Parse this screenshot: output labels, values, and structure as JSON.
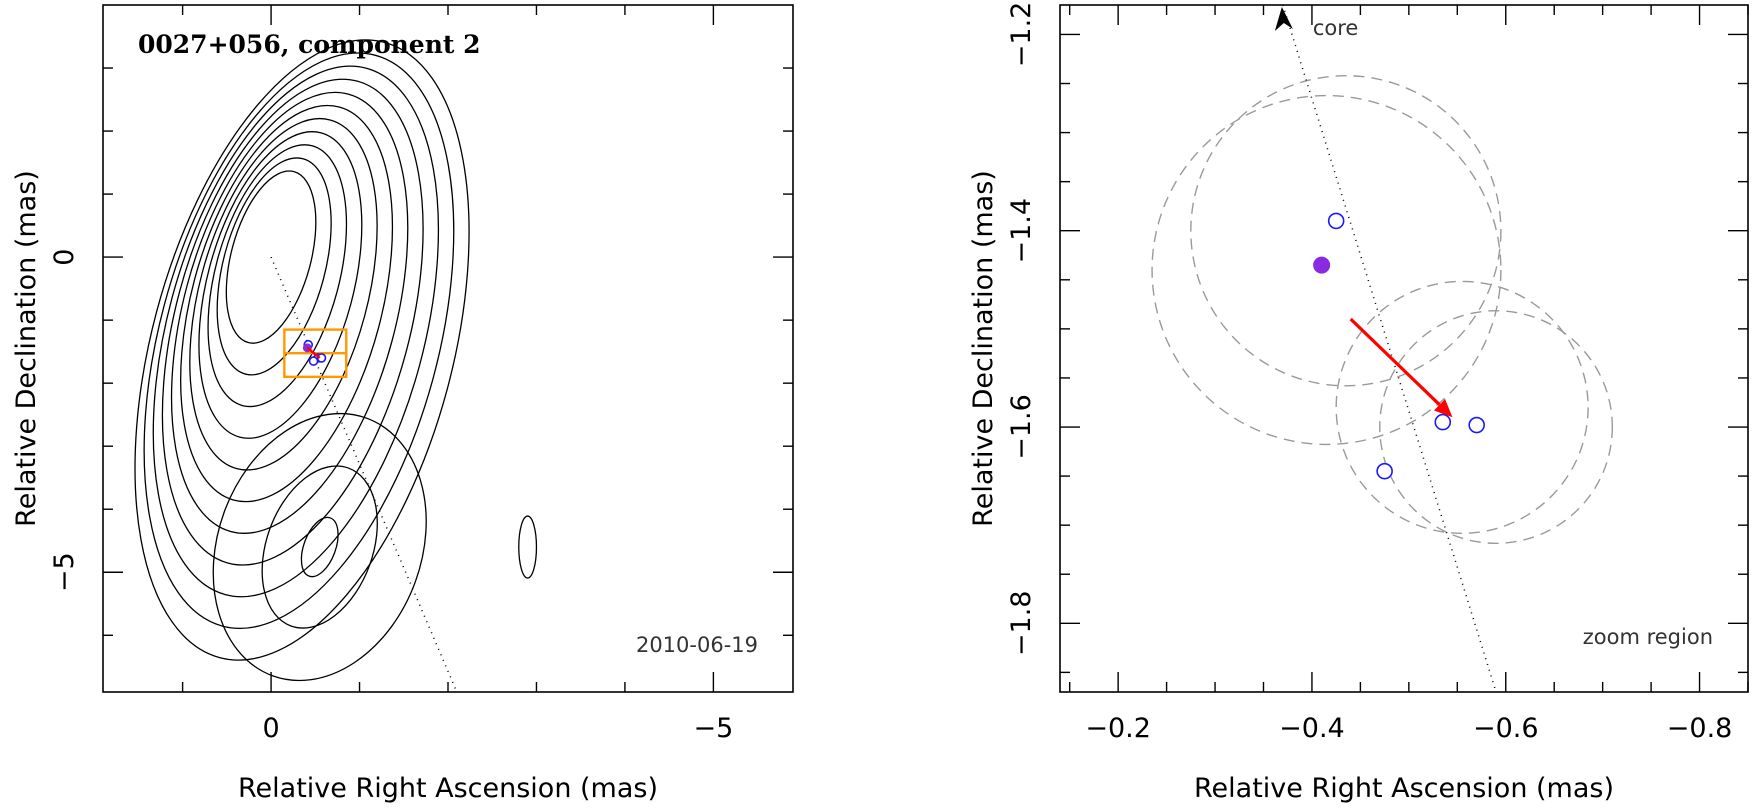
{
  "chart_data": [
    {
      "type": "contour",
      "title": "0027+056, component 2",
      "annotation": "2010-06-19",
      "xlabel": "Relative Right Ascension (mas)",
      "ylabel": "Relative Declination (mas)",
      "xlim": [
        1.9,
        -5.9
      ],
      "ylim": [
        -6.9,
        4.0
      ],
      "xticks": [
        0,
        -5
      ],
      "yticks": [
        0,
        -5
      ],
      "tick_labels_x": [
        "0",
        "−5"
      ],
      "tick_labels_y": [
        "0",
        "−5"
      ],
      "core_position": [
        0,
        0
      ],
      "ridge_line": [
        [
          0,
          0
        ],
        [
          -2.1,
          -6.9
        ]
      ],
      "zoom_region": {
        "ra": [
          -0.15,
          -0.85
        ],
        "dec": [
          -1.15,
          -1.9
        ]
      },
      "components": [
        {
          "ra": -0.42,
          "dec": -1.39,
          "kind": "open"
        },
        {
          "ra": -0.41,
          "dec": -1.44,
          "kind": "filled"
        },
        {
          "ra": -0.53,
          "dec": -1.6,
          "kind": "open"
        },
        {
          "ra": -0.57,
          "dec": -1.6,
          "kind": "open"
        },
        {
          "ra": -0.48,
          "dec": -1.65,
          "kind": "open"
        }
      ],
      "contour_levels_main": 11,
      "secondary_blob_center": [
        -0.55,
        -4.6
      ]
    },
    {
      "type": "scatter",
      "xlabel": "Relative Right Ascension (mas)",
      "ylabel": "Relative Declination (mas)",
      "xlim": [
        -0.14,
        -0.85
      ],
      "ylim": [
        -1.87,
        -1.17
      ],
      "xticks": [
        -0.2,
        -0.4,
        -0.6,
        -0.8
      ],
      "yticks": [
        -1.2,
        -1.4,
        -1.6,
        -1.8
      ],
      "tick_labels_x": [
        "−0.2",
        "−0.4",
        "−0.6",
        "−0.8"
      ],
      "tick_labels_y": [
        "−1.2",
        "−1.4",
        "−1.6",
        "−1.8"
      ],
      "annotations": {
        "core": "core",
        "zoom": "zoom region"
      },
      "ridge_line": [
        [
          -0.37,
          -1.17
        ],
        [
          -0.59,
          -1.87
        ]
      ],
      "points": [
        {
          "x": -0.425,
          "y": -1.39,
          "kind": "open"
        },
        {
          "x": -0.41,
          "y": -1.435,
          "kind": "filled"
        },
        {
          "x": -0.535,
          "y": -1.595,
          "kind": "open"
        },
        {
          "x": -0.57,
          "y": -1.598,
          "kind": "open"
        },
        {
          "x": -0.475,
          "y": -1.645,
          "kind": "open"
        }
      ],
      "arrow": {
        "from": [
          -0.44,
          -1.49
        ],
        "to": [
          -0.545,
          -1.59
        ],
        "color": "#ff0000"
      },
      "uncertainty_circles": [
        {
          "cx": -0.415,
          "cy": -1.44,
          "r": 0.18
        },
        {
          "cx": -0.435,
          "cy": -1.4,
          "r": 0.16
        },
        {
          "cx": -0.555,
          "cy": -1.58,
          "r": 0.13
        },
        {
          "cx": -0.59,
          "cy": -1.6,
          "r": 0.12
        }
      ]
    }
  ]
}
